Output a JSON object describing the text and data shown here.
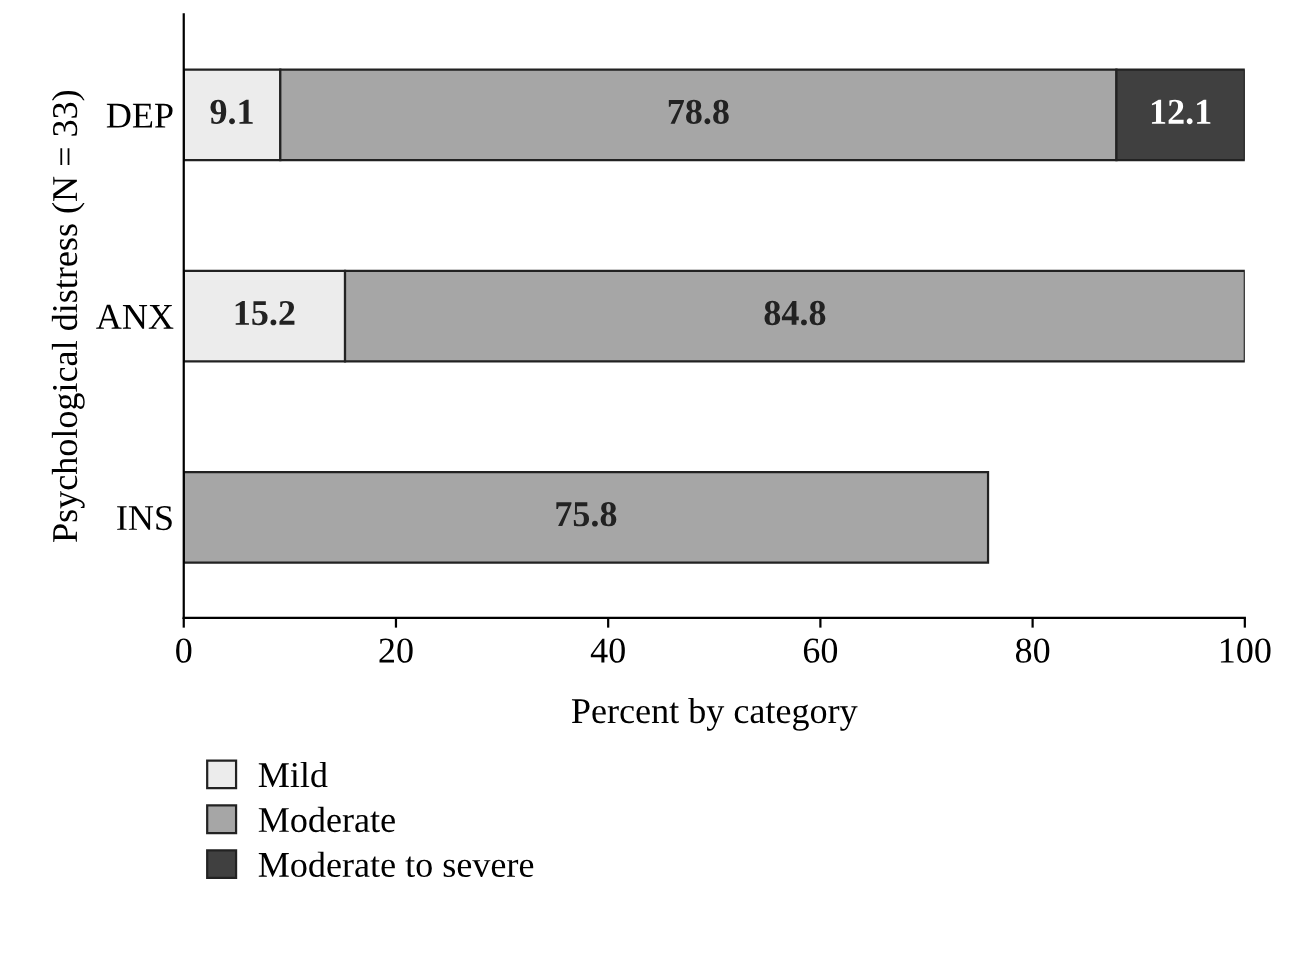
{
  "chart_data": {
    "type": "bar",
    "orientation": "horizontal",
    "stacked": true,
    "data_labels": true,
    "xlabel": "Percent by category",
    "ylabel": "Psychological distress (N = 33)",
    "categories": [
      "DEP",
      "ANX",
      "INS"
    ],
    "series": [
      {
        "name": "Mild",
        "color": "#ececec",
        "values": [
          9.1,
          15.2,
          null
        ]
      },
      {
        "name": "Moderate",
        "color": "#a6a6a6",
        "values": [
          78.8,
          84.8,
          75.8
        ]
      },
      {
        "name": "Moderate to severe",
        "color": "#404040",
        "values": [
          12.1,
          null,
          null
        ]
      }
    ],
    "xlim": [
      0,
      100
    ],
    "xticks": [
      0,
      20,
      40,
      60,
      80,
      100
    ],
    "grid": false,
    "legend": "bottom left"
  }
}
